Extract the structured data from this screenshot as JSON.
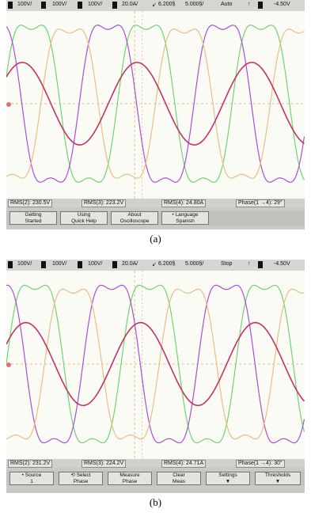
{
  "panel_a": {
    "status": {
      "ch1": "1",
      "v1": "100V/",
      "ch2": "2",
      "v2": "100V/",
      "ch3": "3",
      "v3": "100V/",
      "ch4": "4",
      "v4": "20.0A/",
      "trig_pos": "6.200§",
      "timebase": "5.000§/",
      "mode": "Auto",
      "trig_ch": "1",
      "trig_level": "-4.50V"
    },
    "measurements": [
      "RMS(2): 230.5V",
      "RMS(3): 223.2V",
      "RMS(4): 24.80A",
      "Phase(1 →4): 29°"
    ],
    "softkeys": [
      {
        "line1": "Getting",
        "line2": "Started"
      },
      {
        "line1": "Using",
        "line2": "Quick Help"
      },
      {
        "line1": "About",
        "line2": "Oscilloscope"
      },
      {
        "line1": "• Language",
        "line2": "Spanish"
      }
    ],
    "caption": "(a)"
  },
  "panel_b": {
    "status": {
      "ch1": "1",
      "v1": "100V/",
      "ch2": "2",
      "v2": "100V/",
      "ch3": "3",
      "v3": "100V/",
      "ch4": "4",
      "v4": "20.0A/",
      "trig_pos": "6.200§",
      "timebase": "5.000§/",
      "mode": "Stop",
      "trig_ch": "1",
      "trig_level": "-4.50V"
    },
    "measurements": [
      "RMS(2): 231.2V",
      "RMS(3): 224.2V",
      "RMS(4): 24.71A",
      "Phase(1 →4): 30°"
    ],
    "softkeys": [
      {
        "line1": "• Source",
        "line2": "1"
      },
      {
        "line1": "⟲ Select",
        "line2": "Phase"
      },
      {
        "line1": "Measure",
        "line2": "Phase"
      },
      {
        "line1": "Clear",
        "line2": "Meas"
      },
      {
        "line1": "Settings",
        "line2": "▼"
      },
      {
        "line1": "Thresholds",
        "line2": "▼"
      }
    ],
    "caption": "(b)"
  },
  "colors": {
    "grid": "#e8b98a",
    "ch_green": "#6fd46f",
    "ch_purple": "#a94fd6",
    "ch_tan": "#e6bf86",
    "ch_red": "#c7306a"
  }
}
